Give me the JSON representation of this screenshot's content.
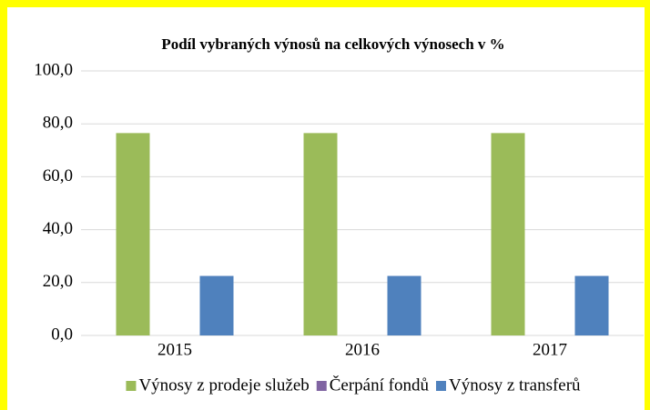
{
  "chart_data": {
    "type": "bar",
    "title": "Podíl vybraných výnosů na celkových výnosech v %",
    "categories": [
      "2015",
      "2016",
      "2017"
    ],
    "series": [
      {
        "name": "Výnosy z prodeje služeb",
        "color": "#9bbb59",
        "values": [
          76.5,
          76.5,
          76.5
        ]
      },
      {
        "name": "Čerpání fondů",
        "color": "#8064a2",
        "values": [
          0,
          0,
          0
        ]
      },
      {
        "name": "Výnosy z transferů",
        "color": "#4f81bd",
        "values": [
          22.5,
          22.5,
          22.5
        ]
      }
    ],
    "ylim": [
      0,
      100
    ],
    "yticks": [
      {
        "value": 0,
        "label": "0,0"
      },
      {
        "value": 20,
        "label": "20,0"
      },
      {
        "value": 40,
        "label": "40,0"
      },
      {
        "value": 60,
        "label": "60,0"
      },
      {
        "value": 80,
        "label": "80,0"
      },
      {
        "value": 100,
        "label": "100,0"
      }
    ],
    "grid": true,
    "legend": "bottom"
  }
}
